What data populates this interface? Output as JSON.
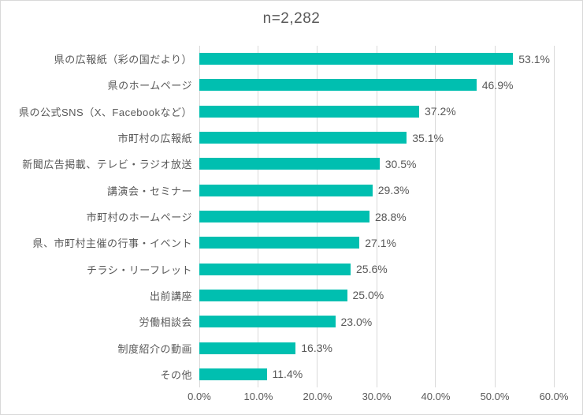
{
  "chart_data": {
    "type": "bar",
    "orientation": "horizontal",
    "title": "n=2,282",
    "categories": [
      "県の広報紙（彩の国だより）",
      "県のホームページ",
      "県の公式SNS（X、Facebookなど）",
      "市町村の広報紙",
      "新聞広告掲載、テレビ・ラジオ放送",
      "講演会・セミナー",
      "市町村のホームページ",
      "県、市町村主催の行事・イベント",
      "チラシ・リーフレット",
      "出前講座",
      "労働相談会",
      "制度紹介の動画",
      "その他"
    ],
    "values": [
      53.1,
      46.9,
      37.2,
      35.1,
      30.5,
      29.3,
      28.8,
      27.1,
      25.6,
      25.0,
      23.0,
      16.3,
      11.4
    ],
    "value_labels": [
      "53.1%",
      "46.9%",
      "37.2%",
      "35.1%",
      "30.5%",
      "29.3%",
      "28.8%",
      "27.1%",
      "25.6%",
      "25.0%",
      "23.0%",
      "16.3%",
      "11.4%"
    ],
    "xlim": [
      0,
      60
    ],
    "x_ticks": [
      "0.0%",
      "10.0%",
      "20.0%",
      "30.0%",
      "40.0%",
      "50.0%",
      "60.0%"
    ],
    "xlabel": "",
    "ylabel": "",
    "grid": true,
    "legend": false,
    "bar_color": "#00BFB0",
    "text_color": "#595959",
    "gridline_color": "#D9D9D9"
  }
}
